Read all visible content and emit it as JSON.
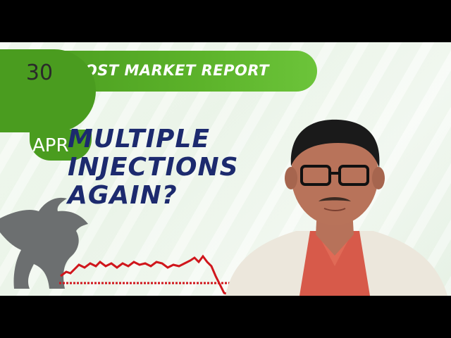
{
  "report": {
    "day": "30",
    "month": "APR",
    "banner": "POST MARKET REPORT"
  },
  "headline": {
    "line1": "MULTIPLE",
    "line2": "INJECTIONS",
    "line3": "AGAIN?"
  },
  "colors": {
    "brand_green": "#4a9c1f",
    "headline_navy": "#1c2a6e",
    "chart_red": "#d0161c"
  },
  "icons": {
    "bull": "bull-silhouette-icon",
    "chart": "price-line-icon"
  }
}
